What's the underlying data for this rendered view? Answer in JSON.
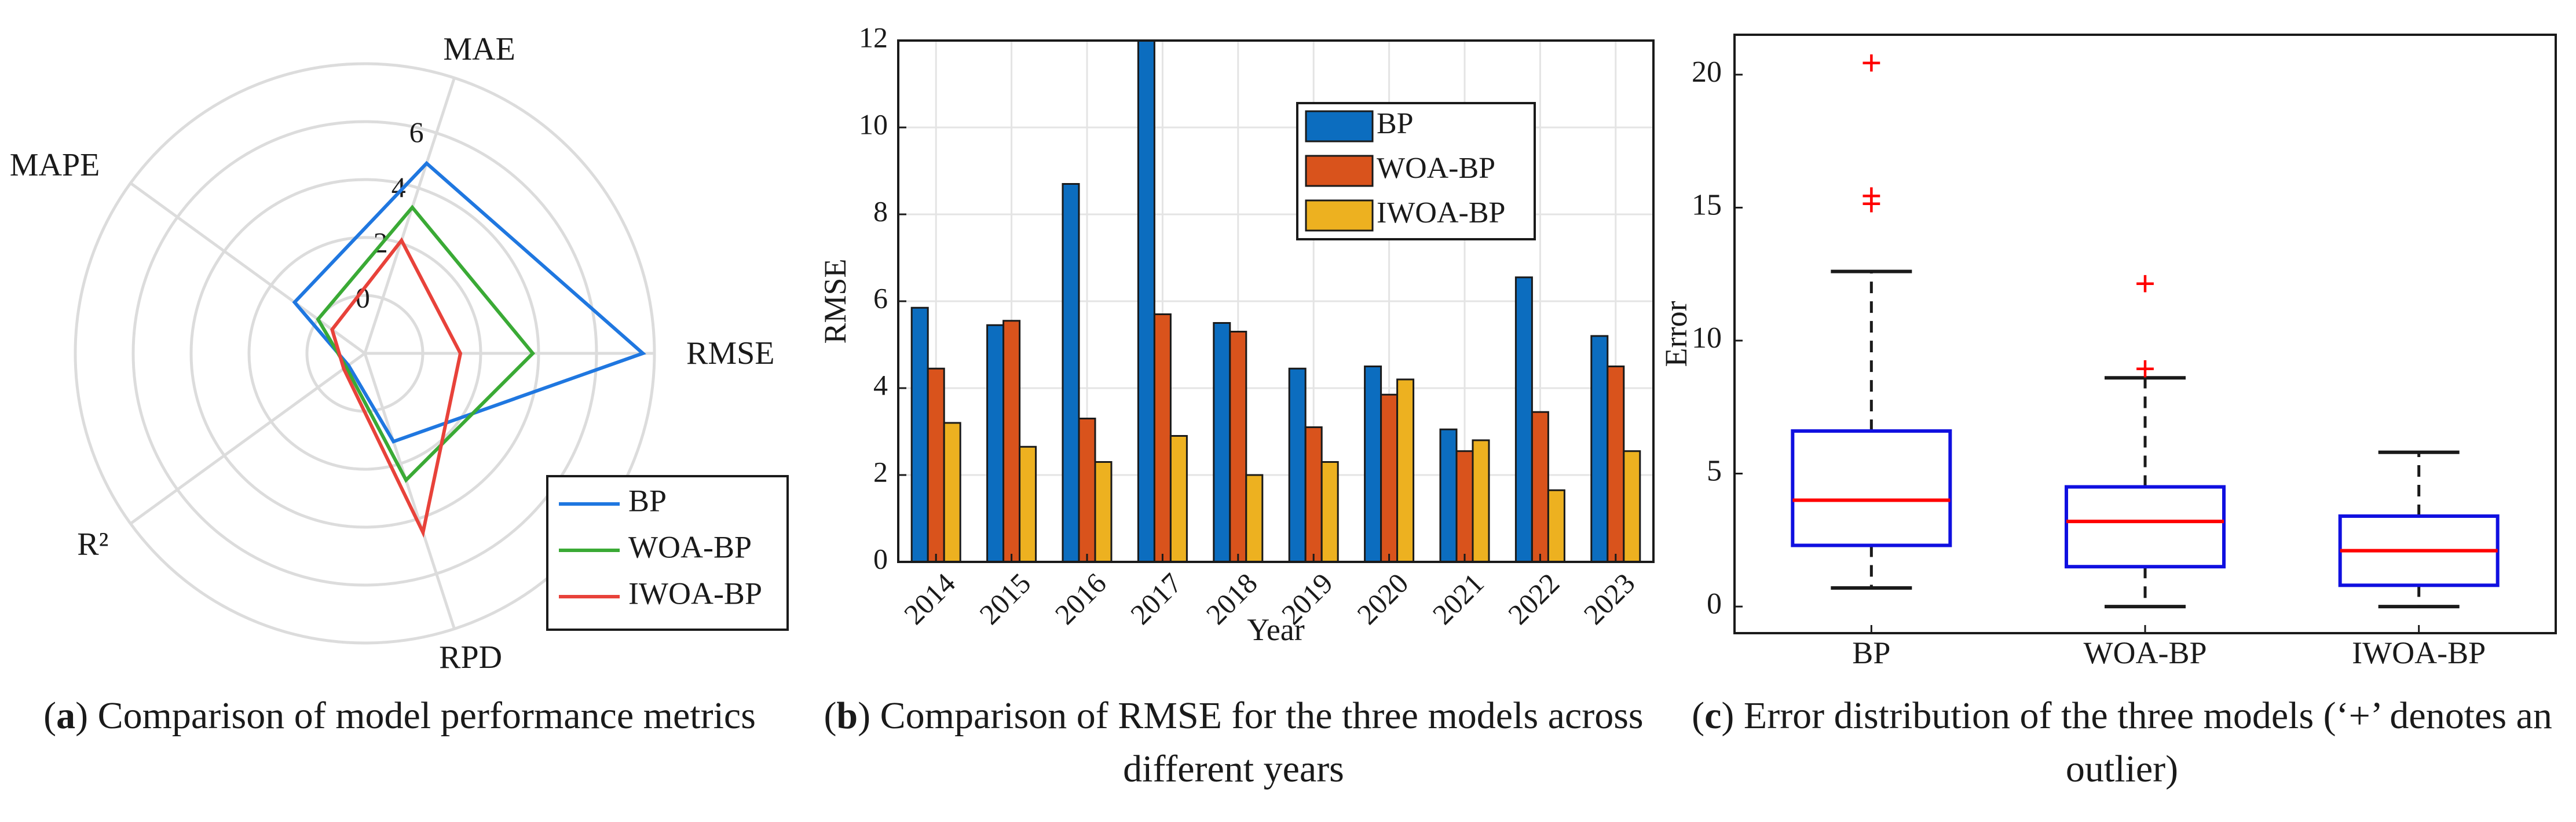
{
  "captions": {
    "a": {
      "tag": "a",
      "text": "Comparison of model performance metrics"
    },
    "b": {
      "tag": "b",
      "text": "Comparison of RMSE for the three models across different years"
    },
    "c": {
      "tag": "c",
      "text": "Error distribution of the three models (‘+’ denotes an outlier)"
    }
  },
  "chart_data": [
    {
      "type": "radar",
      "panel": "a",
      "axes": [
        "MAE",
        "RMSE",
        "RPD",
        "R²",
        "MAPE"
      ],
      "radial_ticks": [
        0,
        2,
        4,
        6
      ],
      "rlim": [
        -2,
        8
      ],
      "series": [
        {
          "name": "BP",
          "color": "#1f77e0",
          "values": [
            4.9,
            7.6,
            1.2,
            -1.3,
            1.0
          ]
        },
        {
          "name": "WOA-BP",
          "color": "#3aaa35",
          "values": [
            3.3,
            3.8,
            2.6,
            -1.2,
            0.0
          ]
        },
        {
          "name": "IWOA-BP",
          "color": "#e8423a",
          "values": [
            2.1,
            1.3,
            4.5,
            -1.1,
            -0.6
          ]
        }
      ],
      "legend": "bottom-right",
      "grid": true
    },
    {
      "type": "bar",
      "panel": "b",
      "categories": [
        "2014",
        "2015",
        "2016",
        "2017",
        "2018",
        "2019",
        "2020",
        "2021",
        "2022",
        "2023"
      ],
      "series": [
        {
          "name": "BP",
          "color": "#0c6dbf",
          "values": [
            5.85,
            5.45,
            8.7,
            12.0,
            5.5,
            4.45,
            4.5,
            3.05,
            6.55,
            5.2
          ]
        },
        {
          "name": "WOA-BP",
          "color": "#d9531c",
          "values": [
            4.45,
            5.55,
            3.3,
            5.7,
            5.3,
            3.1,
            3.85,
            2.55,
            3.45,
            4.5
          ]
        },
        {
          "name": "IWOA-BP",
          "color": "#edb120",
          "values": [
            3.2,
            2.65,
            2.3,
            2.9,
            2.0,
            2.3,
            4.2,
            2.8,
            1.65,
            2.55
          ]
        }
      ],
      "xlabel": "Year",
      "ylabel": "RMSE",
      "ylim": [
        0,
        12
      ],
      "yticks": [
        0,
        2,
        4,
        6,
        8,
        10,
        12
      ],
      "legend": "top-right",
      "grid": true
    },
    {
      "type": "box",
      "panel": "c",
      "categories": [
        "BP",
        "WOA-BP",
        "IWOA-BP"
      ],
      "boxes": [
        {
          "whisker_low": 0.7,
          "q1": 2.3,
          "median": 4.0,
          "q3": 6.6,
          "whisker_high": 12.6,
          "outliers": [
            20.3,
            15.3,
            15.0
          ]
        },
        {
          "whisker_low": 0.0,
          "q1": 1.5,
          "median": 3.2,
          "q3": 4.5,
          "whisker_high": 8.6,
          "outliers": [
            12.0,
            8.8
          ]
        },
        {
          "whisker_low": 0.0,
          "q1": 0.8,
          "median": 2.1,
          "q3": 3.4,
          "whisker_high": 5.8,
          "outliers": []
        }
      ],
      "ylabel": "Error",
      "ylim": [
        -1,
        21.5
      ],
      "yticks": [
        0,
        5,
        10,
        15,
        20
      ],
      "box_color": "#1010e0",
      "median_color": "#ff0000",
      "outlier_color": "#ff0000",
      "grid": false
    }
  ]
}
